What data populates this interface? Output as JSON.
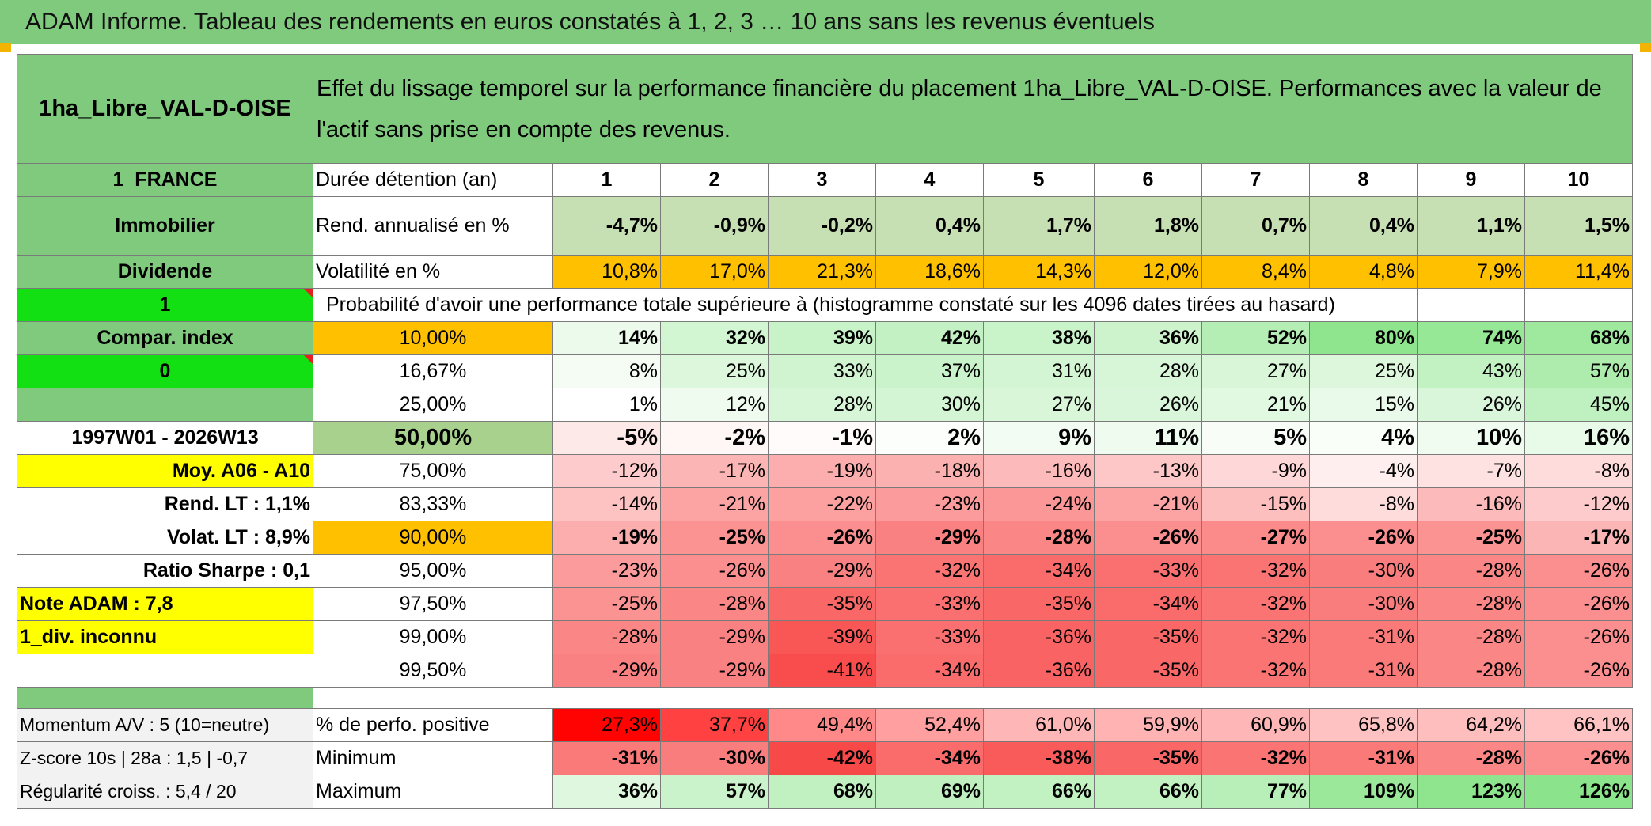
{
  "title": "ADAM Informe. Tableau des rendements en euros constatés à 1, 2, 3 … 10 ans sans les revenus éventuels",
  "header": {
    "asset_name": "1ha_Libre_VAL-D-OISE",
    "description": "Effet du lissage temporel sur la performance financière du placement 1ha_Libre_VAL-D-OISE. Performances avec la valeur de l'actif sans prise en compte des revenus."
  },
  "side": {
    "country": "1_FRANCE",
    "category": "Immobilier",
    "dividend": "Dividende",
    "flag1": "1",
    "compar_index": "Compar. index",
    "flag0": "0",
    "period": "1997W01 - 2026W13",
    "moy": "Moy. A06 - A10",
    "rend_lt": "Rend. LT :   1,1%",
    "volat_lt": "Volat. LT :   8,9%",
    "sharpe": "Ratio Sharpe :   0,1",
    "note": "Note ADAM : 7,8",
    "div_unknown": "1_div. inconnu",
    "momentum": "Momentum A/V : 5 (10=neutre)",
    "zscore": "Z-score 10s | 28a : 1,5 | -0,7",
    "regularite": "Régularité croiss. : 5,4 / 20"
  },
  "labels": {
    "duree": "Durée détention (an)",
    "rend": "Rend. annualisé en %",
    "volat": "Volatilité en %",
    "proba": "Probabilité d'avoir une performance totale supérieure à (histogramme constaté sur les 4096 dates tirées au hasard)",
    "pct_pos": "% de perfo. positive",
    "min": "Minimum",
    "max": "Maximum"
  },
  "years": [
    "1",
    "2",
    "3",
    "4",
    "5",
    "6",
    "7",
    "8",
    "9",
    "10"
  ],
  "rend": [
    "-4,7%",
    "-0,9%",
    "-0,2%",
    "0,4%",
    "1,7%",
    "1,8%",
    "0,7%",
    "0,4%",
    "1,1%",
    "1,5%"
  ],
  "volat": [
    "10,8%",
    "17,0%",
    "21,3%",
    "18,6%",
    "14,3%",
    "12,0%",
    "8,4%",
    "4,8%",
    "7,9%",
    "11,4%"
  ],
  "quantiles": [
    {
      "q": "10,00%",
      "v": [
        "14%",
        "32%",
        "39%",
        "42%",
        "38%",
        "36%",
        "52%",
        "80%",
        "74%",
        "68%"
      ]
    },
    {
      "q": "16,67%",
      "v": [
        "8%",
        "25%",
        "33%",
        "37%",
        "31%",
        "28%",
        "27%",
        "25%",
        "43%",
        "57%"
      ]
    },
    {
      "q": "25,00%",
      "v": [
        "1%",
        "12%",
        "28%",
        "30%",
        "27%",
        "26%",
        "21%",
        "15%",
        "26%",
        "45%"
      ]
    },
    {
      "q": "50,00%",
      "v": [
        "-5%",
        "-2%",
        "-1%",
        "2%",
        "9%",
        "11%",
        "5%",
        "4%",
        "10%",
        "16%"
      ]
    },
    {
      "q": "75,00%",
      "v": [
        "-12%",
        "-17%",
        "-19%",
        "-18%",
        "-16%",
        "-13%",
        "-9%",
        "-4%",
        "-7%",
        "-8%"
      ]
    },
    {
      "q": "83,33%",
      "v": [
        "-14%",
        "-21%",
        "-22%",
        "-23%",
        "-24%",
        "-21%",
        "-15%",
        "-8%",
        "-16%",
        "-12%"
      ]
    },
    {
      "q": "90,00%",
      "v": [
        "-19%",
        "-25%",
        "-26%",
        "-29%",
        "-28%",
        "-26%",
        "-27%",
        "-26%",
        "-25%",
        "-17%"
      ]
    },
    {
      "q": "95,00%",
      "v": [
        "-23%",
        "-26%",
        "-29%",
        "-32%",
        "-34%",
        "-33%",
        "-32%",
        "-30%",
        "-28%",
        "-26%"
      ]
    },
    {
      "q": "97,50%",
      "v": [
        "-25%",
        "-28%",
        "-35%",
        "-33%",
        "-35%",
        "-34%",
        "-32%",
        "-30%",
        "-28%",
        "-26%"
      ]
    },
    {
      "q": "99,00%",
      "v": [
        "-28%",
        "-29%",
        "-39%",
        "-33%",
        "-36%",
        "-35%",
        "-32%",
        "-31%",
        "-28%",
        "-26%"
      ]
    },
    {
      "q": "99,50%",
      "v": [
        "-29%",
        "-29%",
        "-41%",
        "-34%",
        "-36%",
        "-35%",
        "-32%",
        "-31%",
        "-28%",
        "-26%"
      ]
    }
  ],
  "pct_pos": [
    "27,3%",
    "37,7%",
    "49,4%",
    "52,4%",
    "61,0%",
    "59,9%",
    "60,9%",
    "65,8%",
    "64,2%",
    "66,1%"
  ],
  "min": [
    "-31%",
    "-30%",
    "-42%",
    "-34%",
    "-38%",
    "-35%",
    "-32%",
    "-31%",
    "-28%",
    "-26%"
  ],
  "max": [
    "36%",
    "57%",
    "68%",
    "69%",
    "66%",
    "66%",
    "77%",
    "109%",
    "123%",
    "126%"
  ],
  "colors": {
    "header_green": "#7fca7d",
    "bright_green": "#12e012",
    "yellow": "#ffff00",
    "orange": "#ffc000",
    "light_green": "#c6e0b4",
    "median_green": "#a9d18e",
    "loss_red": "#f8696b"
  }
}
